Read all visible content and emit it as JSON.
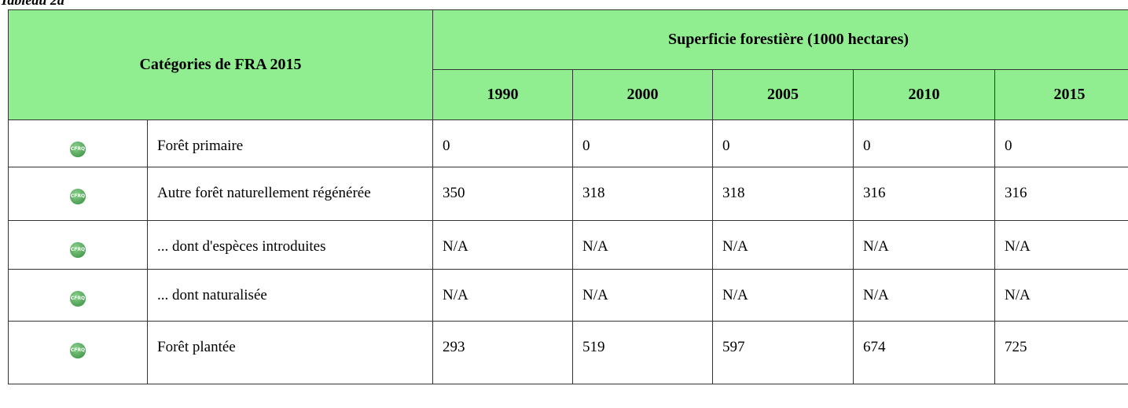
{
  "caption": "Tableau 2a",
  "table": {
    "category_header": "Catégories de FRA 2015",
    "group_header": "Superficie forestière (1000 hectares)",
    "years": [
      "1990",
      "2000",
      "2005",
      "2010",
      "2015"
    ],
    "rows": [
      {
        "icon": "CFRQ",
        "label": "Forêt primaire",
        "values": [
          "0",
          "0",
          "0",
          "0",
          "0"
        ]
      },
      {
        "icon": "CFRQ",
        "label": "Autre forêt naturellement régénérée",
        "values": [
          "350",
          "318",
          "318",
          "316",
          "316"
        ]
      },
      {
        "icon": "CFRQ",
        "label": "... dont d'espèces introduites",
        "values": [
          "N/A",
          "N/A",
          "N/A",
          "N/A",
          "N/A"
        ]
      },
      {
        "icon": "CFRQ",
        "label": "... dont naturalisée",
        "values": [
          "N/A",
          "N/A",
          "N/A",
          "N/A",
          "N/A"
        ]
      },
      {
        "icon": "CFRQ",
        "label": "Forêt plantée",
        "values": [
          "293",
          "519",
          "597",
          "674",
          "725"
        ]
      }
    ]
  }
}
